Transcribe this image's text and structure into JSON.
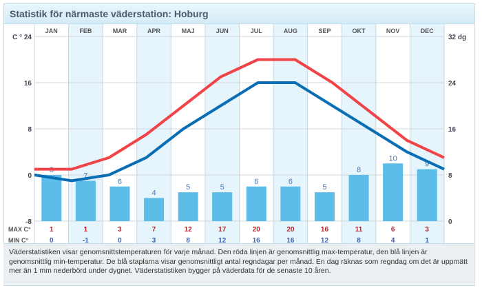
{
  "title": "Statistik för närmaste väderstation: Hoburg",
  "chart_data": {
    "type": "line+bar",
    "categories": [
      "JAN",
      "FEB",
      "MAR",
      "APR",
      "MAJ",
      "JUN",
      "JUL",
      "AUG",
      "SEP",
      "OKT",
      "NOV",
      "DEC"
    ],
    "series": [
      {
        "name": "MAX C°",
        "type": "line",
        "color": "#f04448",
        "values": [
          1,
          1,
          3,
          7,
          12,
          17,
          20,
          20,
          16,
          11,
          6,
          3
        ]
      },
      {
        "name": "MIN C°",
        "type": "line",
        "color": "#0a6eb4",
        "values": [
          0,
          -1,
          0,
          3,
          8,
          12,
          16,
          16,
          12,
          8,
          4,
          1
        ]
      },
      {
        "name": "Regndagar",
        "type": "bar",
        "color": "#5bbde8",
        "values": [
          8,
          7,
          6,
          4,
          5,
          5,
          6,
          6,
          5,
          8,
          10,
          9
        ]
      }
    ],
    "left_axis": {
      "label": "C °",
      "ticks": [
        "24",
        "16",
        "8",
        "0",
        "-8"
      ],
      "range": [
        -8,
        24
      ]
    },
    "right_axis": {
      "label": "dg",
      "ticks": [
        "32",
        "24",
        "16",
        "8",
        "0"
      ],
      "range": [
        0,
        32
      ]
    },
    "row_labels": {
      "max": "MAX C°",
      "min": "MIN C°"
    }
  },
  "footer": "Väderstatistiken visar genomsnittstemperaturen för varje månad. Den röda linjen är genomsnittlig max-temperatur, den blå linjen är genomsnittlig min-temperatur. De blå staplarna visar genomsnittligt antal regndagar per månad. En dag räknas som regndag om det är uppmätt mer än 1 mm nederbörd under dygnet. Väderstatistiken bygger på väderdata för de senaste 10 åren."
}
